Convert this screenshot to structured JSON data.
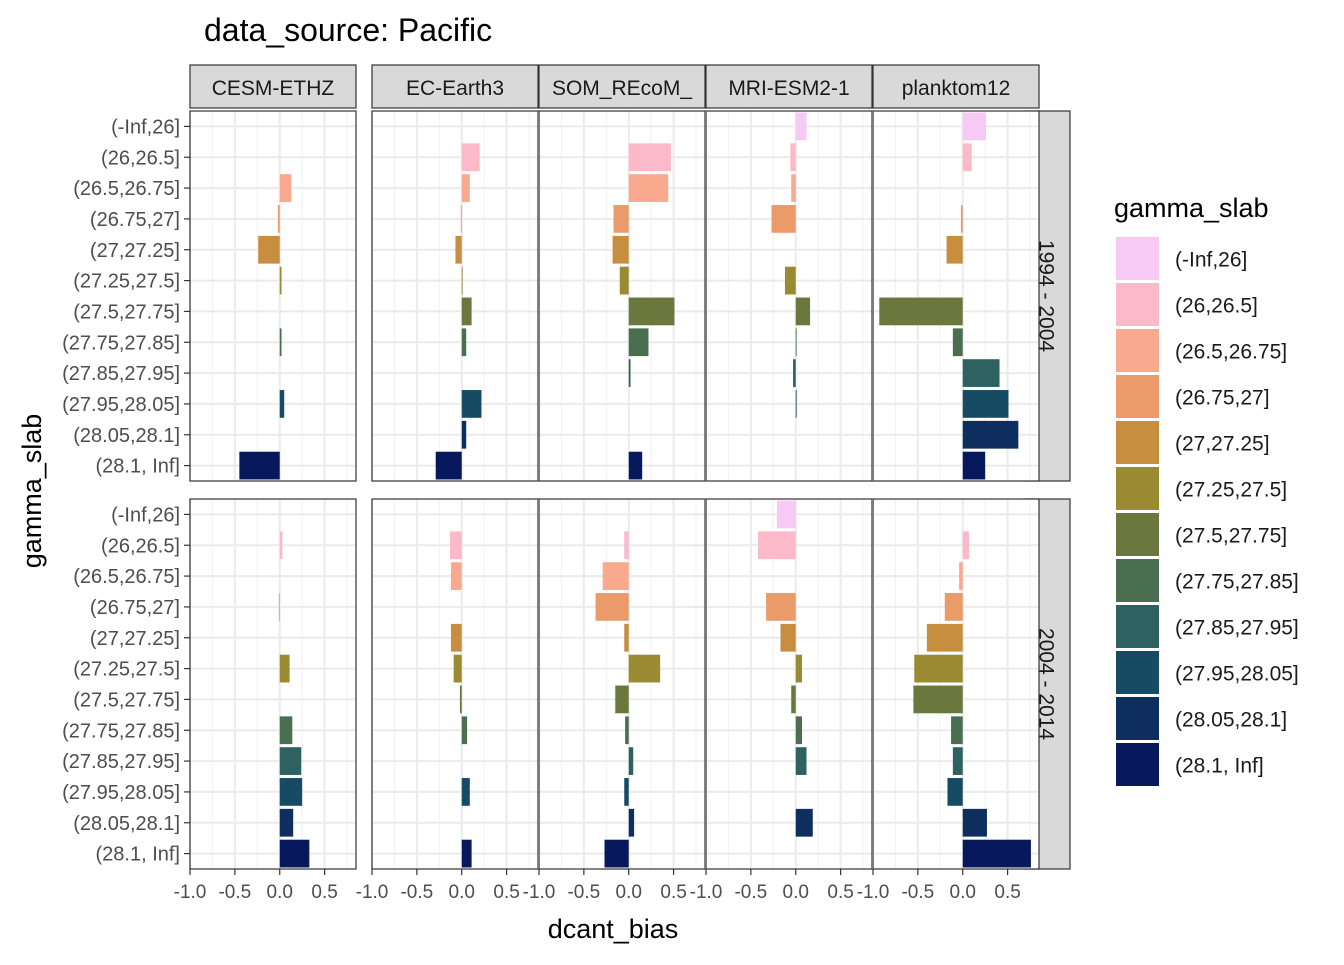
{
  "chart_data": {
    "type": "bar",
    "orientation": "horizontal",
    "title": "data_source: Pacific",
    "xlabel": "dcant_bias",
    "ylabel": "gamma_slab",
    "xlim": [
      -1.0,
      0.85
    ],
    "x_ticks": [
      -1.0,
      -0.5,
      0.0,
      0.5
    ],
    "x_tick_labels": [
      "-1.0",
      "-0.5",
      "0.0",
      "0.5"
    ],
    "grid": true,
    "legend_title": "gamma_slab",
    "legend_position": "right",
    "categories": [
      "(-Inf,26]",
      "(26,26.5]",
      "(26.5,26.75]",
      "(26.75,27]",
      "(27,27.25]",
      "(27.25,27.5]",
      "(27.5,27.75]",
      "(27.75,27.85]",
      "(27.85,27.95]",
      "(27.95,28.05]",
      "(28.05,28.1]",
      "(28.1, Inf]"
    ],
    "colors": [
      "#F7C9F5",
      "#FBB9CA",
      "#F9A98E",
      "#EA9B69",
      "#C88E40",
      "#9A8A31",
      "#6B783D",
      "#4A6F50",
      "#2E6260",
      "#174A63",
      "#0E2F5E",
      "#07185C"
    ],
    "models": [
      "CESM-ETHZ",
      "EC-Earth3",
      "SOM_REcoM_",
      "MRI-ESM2-1",
      "planktom12"
    ],
    "periods": [
      "1994 - 2004",
      "2004 - 2014"
    ],
    "panels": [
      {
        "period": "1994 - 2004",
        "model": "CESM-ETHZ",
        "values": [
          0.0,
          0.0,
          0.13,
          -0.02,
          -0.24,
          0.02,
          0.0,
          0.02,
          0.0,
          0.05,
          0.0,
          -0.45
        ]
      },
      {
        "period": "1994 - 2004",
        "model": "EC-Earth3",
        "values": [
          0.0,
          0.2,
          0.09,
          -0.01,
          -0.07,
          0.01,
          0.11,
          0.05,
          0.0,
          0.22,
          0.05,
          -0.29
        ]
      },
      {
        "period": "1994 - 2004",
        "model": "SOM_REcoM_",
        "values": [
          0.0,
          0.47,
          0.44,
          -0.17,
          -0.18,
          -0.1,
          0.51,
          0.22,
          0.02,
          0.0,
          0.0,
          0.15
        ]
      },
      {
        "period": "1994 - 2004",
        "model": "MRI-ESM2-1",
        "values": [
          0.12,
          -0.06,
          -0.05,
          -0.27,
          0.0,
          -0.12,
          0.16,
          0.01,
          -0.03,
          0.01,
          0.0,
          0.0
        ]
      },
      {
        "period": "1994 - 2004",
        "model": "planktom12",
        "values": [
          0.26,
          0.1,
          0.0,
          -0.02,
          -0.18,
          0.0,
          -0.93,
          -0.11,
          0.41,
          0.51,
          0.62,
          0.25
        ]
      },
      {
        "period": "2004 - 2014",
        "model": "CESM-ETHZ",
        "values": [
          0.0,
          0.03,
          0.0,
          -0.01,
          0.0,
          0.11,
          0.0,
          0.14,
          0.24,
          0.25,
          0.15,
          0.33
        ]
      },
      {
        "period": "2004 - 2014",
        "model": "EC-Earth3",
        "values": [
          0.0,
          -0.13,
          -0.12,
          0.0,
          -0.12,
          -0.09,
          -0.02,
          0.06,
          0.0,
          0.09,
          0.0,
          0.11
        ]
      },
      {
        "period": "2004 - 2014",
        "model": "SOM_REcoM_",
        "values": [
          0.0,
          -0.05,
          -0.29,
          -0.37,
          -0.05,
          0.35,
          -0.15,
          -0.04,
          0.05,
          -0.05,
          0.06,
          -0.27
        ]
      },
      {
        "period": "2004 - 2014",
        "model": "MRI-ESM2-1",
        "values": [
          -0.21,
          -0.42,
          0.0,
          -0.33,
          -0.17,
          0.07,
          -0.05,
          0.07,
          0.12,
          0.0,
          0.19,
          0.0
        ]
      },
      {
        "period": "2004 - 2014",
        "model": "planktom12",
        "values": [
          0.0,
          0.07,
          -0.04,
          -0.2,
          -0.4,
          -0.54,
          -0.55,
          -0.13,
          -0.11,
          -0.17,
          0.27,
          0.76
        ]
      }
    ]
  }
}
